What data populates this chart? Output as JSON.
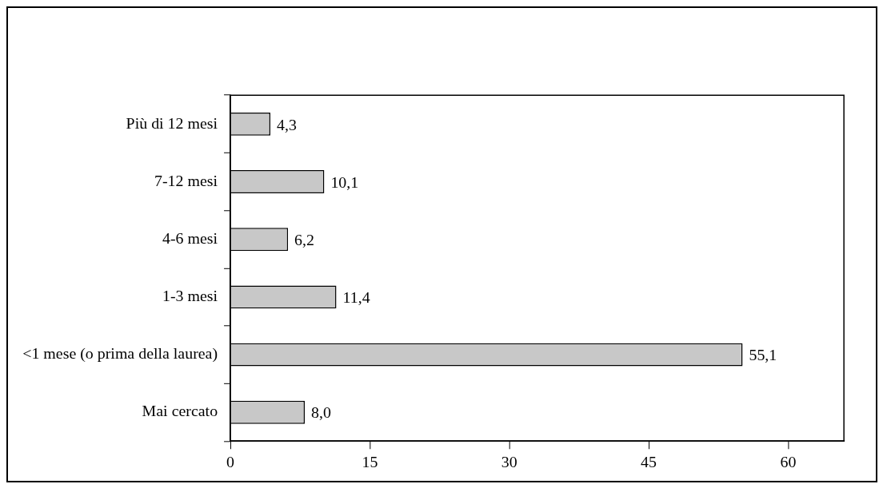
{
  "chart_data": {
    "type": "bar",
    "orientation": "horizontal",
    "categories": [
      "Più di 12 mesi",
      "7-12 mesi",
      "4-6 mesi",
      "1-3 mesi",
      "<1 mese (o prima della laurea)",
      "Mai cercato"
    ],
    "values": [
      4.3,
      10.1,
      6.2,
      11.4,
      55.1,
      8.0
    ],
    "value_labels": [
      "4,3",
      "10,1",
      "6,2",
      "11,4",
      "55,1",
      "8,0"
    ],
    "color": "#c8c8c8",
    "xlim": [
      0,
      66
    ],
    "xticks": [
      0,
      15,
      30,
      45,
      60
    ],
    "grid": false,
    "legend": false
  }
}
